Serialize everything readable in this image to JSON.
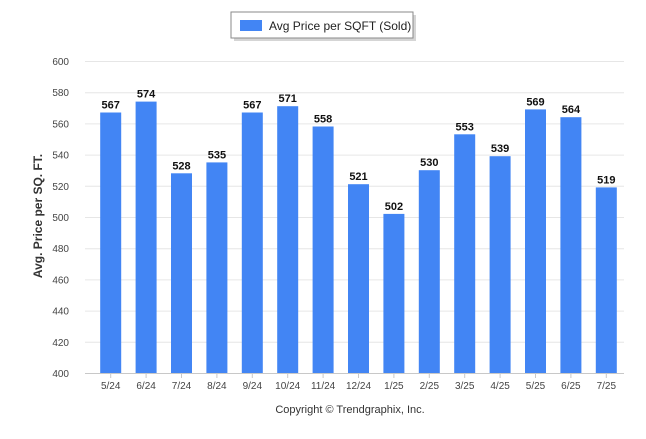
{
  "chart_data": {
    "type": "bar",
    "legend": {
      "label": "Avg Price per SQFT (Sold)",
      "position": "top-center"
    },
    "ylabel": "Avg. Price per SQ. FT.",
    "xlabel": "",
    "categories": [
      "5/24",
      "6/24",
      "7/24",
      "8/24",
      "9/24",
      "10/24",
      "11/24",
      "12/24",
      "1/25",
      "2/25",
      "3/25",
      "4/25",
      "5/25",
      "6/25",
      "7/25"
    ],
    "values": [
      567,
      574,
      528,
      535,
      567,
      571,
      558,
      521,
      502,
      530,
      553,
      539,
      569,
      564,
      519
    ],
    "data_labels": [
      "567",
      "574",
      "528",
      "535",
      "567",
      "571",
      "558",
      "521",
      "502",
      "530",
      "553",
      "539",
      "569",
      "564",
      "519"
    ],
    "ylim": [
      400,
      600
    ],
    "yticks": [
      400,
      420,
      440,
      460,
      480,
      500,
      520,
      540,
      560,
      580,
      600
    ],
    "grid": true,
    "bar_color": "#4285f4"
  },
  "footer": {
    "copyright": "Copyright © Trendgraphix, Inc."
  }
}
